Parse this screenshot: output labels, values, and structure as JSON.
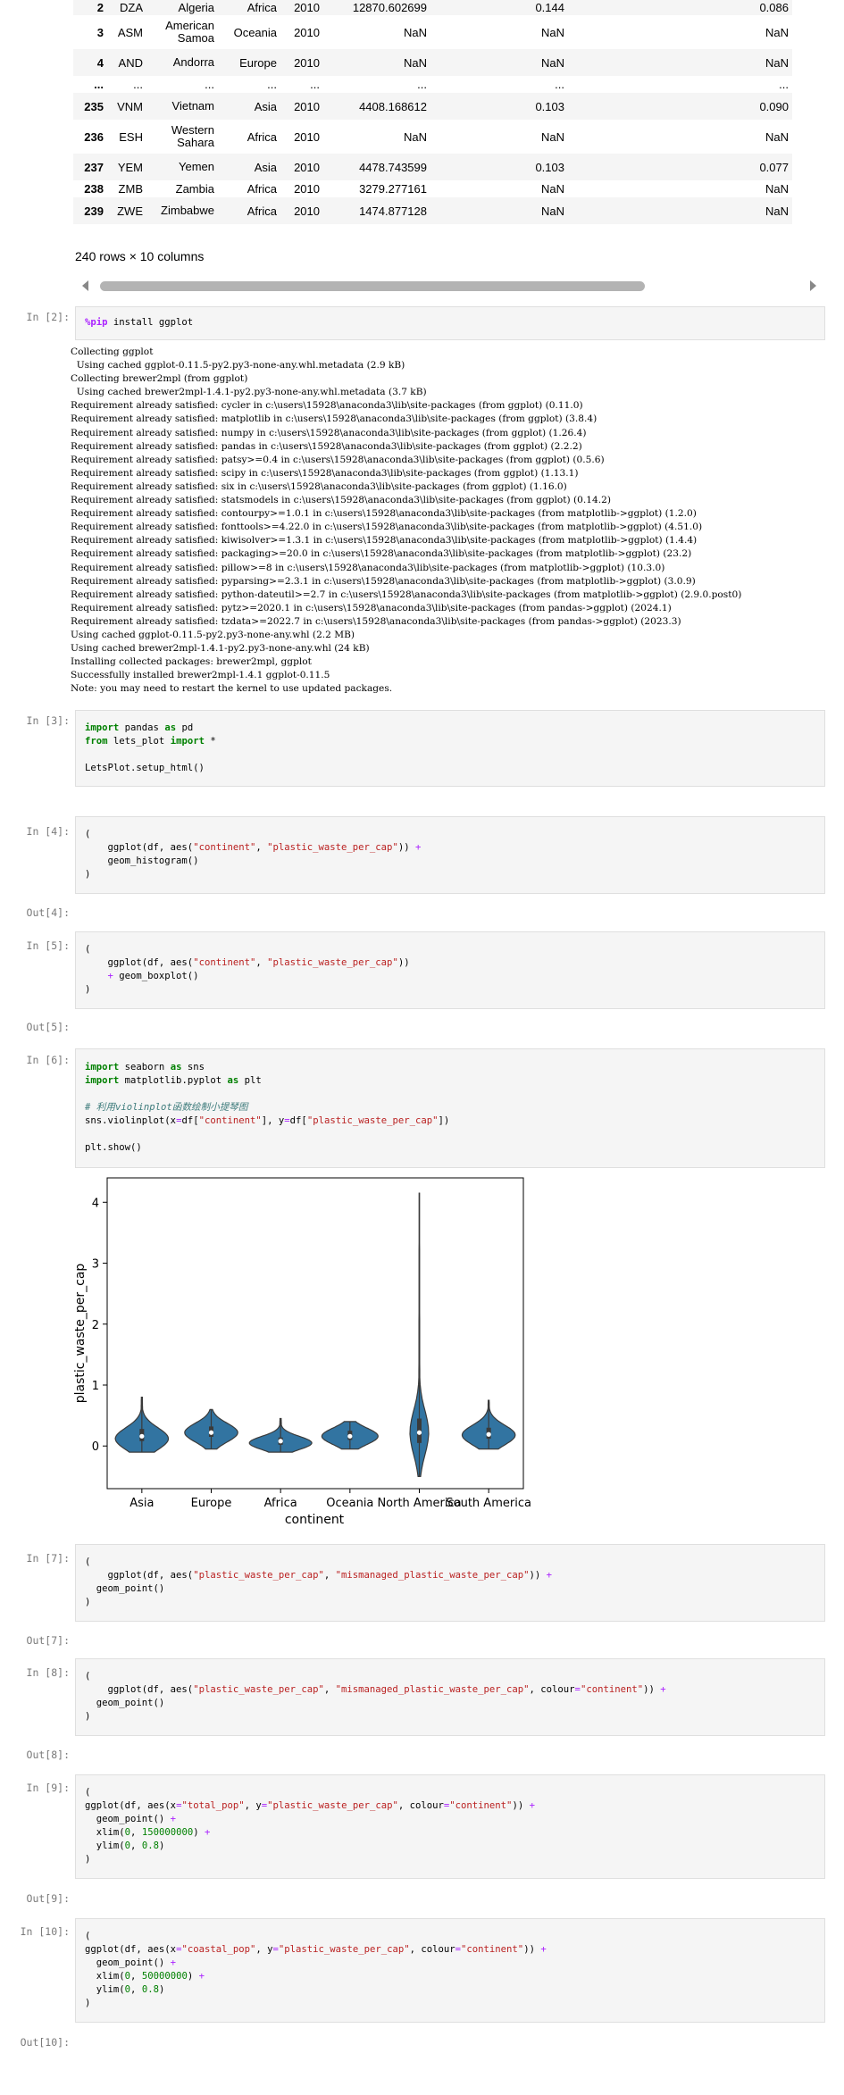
{
  "table": {
    "rows": [
      {
        "idx": "2",
        "code": "DZA",
        "country": "Algeria",
        "continent": "Africa",
        "year": "2010",
        "gdp": "12870.602699",
        "c7": "0.144",
        "c8": "0.086"
      },
      {
        "idx": "3",
        "code": "ASM",
        "country": "American Samoa",
        "continent": "Oceania",
        "year": "2010",
        "gdp": "NaN",
        "c7": "NaN",
        "c8": "NaN"
      },
      {
        "idx": "4",
        "code": "AND",
        "country": "Andorra",
        "continent": "Europe",
        "year": "2010",
        "gdp": "NaN",
        "c7": "NaN",
        "c8": "NaN"
      },
      {
        "idx": "...",
        "code": "...",
        "country": "...",
        "continent": "...",
        "year": "...",
        "gdp": "...",
        "c7": "...",
        "c8": "..."
      },
      {
        "idx": "235",
        "code": "VNM",
        "country": "Vietnam",
        "continent": "Asia",
        "year": "2010",
        "gdp": "4408.168612",
        "c7": "0.103",
        "c8": "0.090"
      },
      {
        "idx": "236",
        "code": "ESH",
        "country": "Western Sahara",
        "continent": "Africa",
        "year": "2010",
        "gdp": "NaN",
        "c7": "NaN",
        "c8": "NaN"
      },
      {
        "idx": "237",
        "code": "YEM",
        "country": "Yemen",
        "continent": "Asia",
        "year": "2010",
        "gdp": "4478.743599",
        "c7": "0.103",
        "c8": "0.077"
      },
      {
        "idx": "238",
        "code": "ZMB",
        "country": "Zambia",
        "continent": "Africa",
        "year": "2010",
        "gdp": "3279.277161",
        "c7": "NaN",
        "c8": "NaN"
      },
      {
        "idx": "239",
        "code": "ZWE",
        "country": "Zimbabwe",
        "continent": "Africa",
        "year": "2010",
        "gdp": "1474.877128",
        "c7": "NaN",
        "c8": "NaN"
      }
    ],
    "summary": "240 rows × 10 columns"
  },
  "cells": {
    "c2": {
      "prompt": "In [2]:",
      "code_magic": "%pip",
      "code_rest": " install ggplot",
      "output": [
        "Collecting ggplot",
        "  Using cached ggplot-0.11.5-py2.py3-none-any.whl.metadata (2.9 kB)",
        "Collecting brewer2mpl (from ggplot)",
        "  Using cached brewer2mpl-1.4.1-py2.py3-none-any.whl.metadata (3.7 kB)",
        "Requirement already satisfied: cycler in c:\\users\\15928\\anaconda3\\lib\\site-packages (from ggplot) (0.11.0)",
        "Requirement already satisfied: matplotlib in c:\\users\\15928\\anaconda3\\lib\\site-packages (from ggplot) (3.8.4)",
        "Requirement already satisfied: numpy in c:\\users\\15928\\anaconda3\\lib\\site-packages (from ggplot) (1.26.4)",
        "Requirement already satisfied: pandas in c:\\users\\15928\\anaconda3\\lib\\site-packages (from ggplot) (2.2.2)",
        "Requirement already satisfied: patsy>=0.4 in c:\\users\\15928\\anaconda3\\lib\\site-packages (from ggplot) (0.5.6)",
        "Requirement already satisfied: scipy in c:\\users\\15928\\anaconda3\\lib\\site-packages (from ggplot) (1.13.1)",
        "Requirement already satisfied: six in c:\\users\\15928\\anaconda3\\lib\\site-packages (from ggplot) (1.16.0)",
        "Requirement already satisfied: statsmodels in c:\\users\\15928\\anaconda3\\lib\\site-packages (from ggplot) (0.14.2)",
        "Requirement already satisfied: contourpy>=1.0.1 in c:\\users\\15928\\anaconda3\\lib\\site-packages (from matplotlib->ggplot) (1.2.0)",
        "Requirement already satisfied: fonttools>=4.22.0 in c:\\users\\15928\\anaconda3\\lib\\site-packages (from matplotlib->ggplot) (4.51.0)",
        "Requirement already satisfied: kiwisolver>=1.3.1 in c:\\users\\15928\\anaconda3\\lib\\site-packages (from matplotlib->ggplot) (1.4.4)",
        "Requirement already satisfied: packaging>=20.0 in c:\\users\\15928\\anaconda3\\lib\\site-packages (from matplotlib->ggplot) (23.2)",
        "Requirement already satisfied: pillow>=8 in c:\\users\\15928\\anaconda3\\lib\\site-packages (from matplotlib->ggplot) (10.3.0)",
        "Requirement already satisfied: pyparsing>=2.3.1 in c:\\users\\15928\\anaconda3\\lib\\site-packages (from matplotlib->ggplot) (3.0.9)",
        "Requirement already satisfied: python-dateutil>=2.7 in c:\\users\\15928\\anaconda3\\lib\\site-packages (from matplotlib->ggplot) (2.9.0.post0)",
        "Requirement already satisfied: pytz>=2020.1 in c:\\users\\15928\\anaconda3\\lib\\site-packages (from pandas->ggplot) (2024.1)",
        "Requirement already satisfied: tzdata>=2022.7 in c:\\users\\15928\\anaconda3\\lib\\site-packages (from pandas->ggplot) (2023.3)",
        "Using cached ggplot-0.11.5-py2.py3-none-any.whl (2.2 MB)",
        "Using cached brewer2mpl-1.4.1-py2.py3-none-any.whl (24 kB)",
        "Installing collected packages: brewer2mpl, ggplot",
        "Successfully installed brewer2mpl-1.4.1 ggplot-0.11.5",
        "Note: you may need to restart the kernel to use updated packages."
      ]
    },
    "c3": {
      "prompt": "In [3]:",
      "l1_kw1": "import",
      "l1_rest": " pandas ",
      "l1_kw2": "as",
      "l1_end": " pd",
      "l2_kw1": "from",
      "l2_rest": " lets_plot ",
      "l2_kw2": "import",
      "l2_end": " *",
      "l4": "LetsPlot.setup_html()"
    },
    "c4": {
      "prompt": "In [4]:",
      "out": "Out[4]:",
      "l1": "(",
      "l2_a": "    ggplot(df, aes(",
      "l2_s1": "\"continent\"",
      "l2_b": ", ",
      "l2_s2": "\"plastic_waste_per_cap\"",
      "l2_c": ")) ",
      "l2_op": "+",
      "l3": "    geom_histogram()",
      "l4": ")"
    },
    "c5": {
      "prompt": "In [5]:",
      "out": "Out[5]:",
      "l1": "(",
      "l2_a": "    ggplot(df, aes(",
      "l2_s1": "\"continent\"",
      "l2_b": ", ",
      "l2_s2": "\"plastic_waste_per_cap\"",
      "l2_c": "))",
      "l3_op": "    +",
      "l3_b": " geom_boxplot()",
      "l4": ")"
    },
    "c6": {
      "prompt": "In [6]:",
      "l1_kw1": "import",
      "l1_rest": " seaborn ",
      "l1_kw2": "as",
      "l1_end": " sns",
      "l2_kw1": "import",
      "l2_rest": " matplotlib.pyplot ",
      "l2_kw2": "as",
      "l2_end": " plt",
      "l4_cm": "# 利用violinplot函数绘制小提琴图",
      "l5_a": "sns.violinplot(x",
      "l5_o1": "=",
      "l5_b": "df[",
      "l5_s1": "\"continent\"",
      "l5_c": "], y",
      "l5_o2": "=",
      "l5_d": "df[",
      "l5_s2": "\"plastic_waste_per_cap\"",
      "l5_e": "])",
      "l7": "plt.show()"
    },
    "c7": {
      "prompt": "In [7]:",
      "out": "Out[7]:",
      "l1": "(",
      "l2_a": "    ggplot(df, aes(",
      "l2_s1": "\"plastic_waste_per_cap\"",
      "l2_b": ", ",
      "l2_s2": "\"mismanaged_plastic_waste_per_cap\"",
      "l2_c": ")) ",
      "l2_op": "+",
      "l3": "  geom_point()",
      "l4": ")"
    },
    "c8": {
      "prompt": "In [8]:",
      "out": "Out[8]:",
      "l1": "(",
      "l2_a": "    ggplot(df, aes(",
      "l2_s1": "\"plastic_waste_per_cap\"",
      "l2_b": ", ",
      "l2_s2": "\"mismanaged_plastic_waste_per_cap\"",
      "l2_c": ", colour",
      "l2_o": "=",
      "l2_s3": "\"continent\"",
      "l2_d": ")) ",
      "l2_op": "+",
      "l3": "  geom_point()",
      "l4": ")"
    },
    "c9": {
      "prompt": "In [9]:",
      "out": "Out[9]:",
      "l1": "(",
      "l2_a": "ggplot(df, aes(x",
      "l2_o1": "=",
      "l2_s1": "\"total_pop\"",
      "l2_b": ", y",
      "l2_o2": "=",
      "l2_s2": "\"plastic_waste_per_cap\"",
      "l2_c": ", colour",
      "l2_o3": "=",
      "l2_s3": "\"continent\"",
      "l2_d": ")) ",
      "l2_op": "+",
      "l3_a": "  geom_point() ",
      "l3_op": "+",
      "l4_a": "  xlim(",
      "l4_n1": "0",
      "l4_b": ", ",
      "l4_n2": "150000000",
      "l4_c": ") ",
      "l4_op": "+",
      "l5_a": "  ylim(",
      "l5_n1": "0",
      "l5_b": ", ",
      "l5_n2": "0.8",
      "l5_c": ")",
      "l6": ")"
    },
    "c10": {
      "prompt": "In [10]:",
      "out": "Out[10]:",
      "l1": "(",
      "l2_a": "ggplot(df, aes(x",
      "l2_o1": "=",
      "l2_s1": "\"coastal_pop\"",
      "l2_b": ", y",
      "l2_o2": "=",
      "l2_s2": "\"plastic_waste_per_cap\"",
      "l2_c": ", colour",
      "l2_o3": "=",
      "l2_s3": "\"continent\"",
      "l2_d": ")) ",
      "l2_op": "+",
      "l3_a": "  geom_point() ",
      "l3_op": "+",
      "l4_a": "  xlim(",
      "l4_n1": "0",
      "l4_b": ", ",
      "l4_n2": "50000000",
      "l4_c": ") ",
      "l4_op": "+",
      "l5_a": "  ylim(",
      "l5_n1": "0",
      "l5_b": ", ",
      "l5_n2": "0.8",
      "l5_c": ")",
      "l6": ")"
    }
  },
  "chart_data": {
    "type": "violin",
    "categories": [
      "Asia",
      "Europe",
      "Africa",
      "Oceania",
      "North America",
      "South America"
    ],
    "xlabel": "continent",
    "ylabel": "plastic_waste_per_cap",
    "ylim": [
      -0.7,
      4.4
    ],
    "yticks": [
      0,
      1,
      2,
      3,
      4
    ],
    "color": "#3274a1",
    "violins": [
      {
        "min": -0.1,
        "max": 0.8,
        "q1": 0.08,
        "median": 0.16,
        "q3": 0.28,
        "peak": 0.12,
        "width": 0.85
      },
      {
        "min": -0.05,
        "max": 0.6,
        "q1": 0.15,
        "median": 0.22,
        "q3": 0.32,
        "peak": 0.22,
        "width": 0.85
      },
      {
        "min": -0.1,
        "max": 0.45,
        "q1": 0.02,
        "median": 0.08,
        "q3": 0.14,
        "peak": 0.05,
        "width": 1.0
      },
      {
        "min": -0.05,
        "max": 0.4,
        "q1": 0.1,
        "median": 0.16,
        "q3": 0.25,
        "peak": 0.16,
        "width": 0.9
      },
      {
        "min": -0.5,
        "max": 4.15,
        "q1": 0.05,
        "median": 0.22,
        "q3": 0.45,
        "peak": 0.22,
        "width": 0.3
      },
      {
        "min": -0.05,
        "max": 0.75,
        "q1": 0.12,
        "median": 0.19,
        "q3": 0.3,
        "peak": 0.18,
        "width": 0.85
      }
    ]
  }
}
